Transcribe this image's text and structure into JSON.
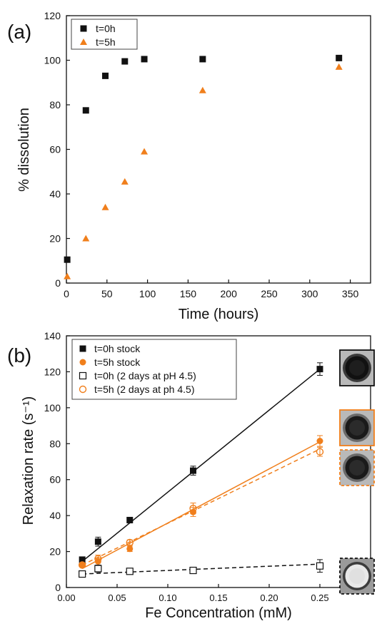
{
  "chart_data": [
    {
      "type": "scatter",
      "panel_label": "(a)",
      "xlabel": "Time (hours)",
      "ylabel": "% dissolution",
      "xlim": [
        0,
        375
      ],
      "ylim": [
        0,
        120
      ],
      "xticks": [
        0,
        50,
        100,
        150,
        200,
        250,
        300,
        350
      ],
      "yticks": [
        0,
        20,
        40,
        60,
        80,
        100,
        120
      ],
      "legend_position": "top-left",
      "grid": false,
      "series": [
        {
          "name": "t=0h",
          "marker": "square-filled",
          "color": "#111111",
          "points": [
            [
              1,
              10.5
            ],
            [
              24,
              77.5
            ],
            [
              48,
              93
            ],
            [
              72,
              99.5
            ],
            [
              96,
              100.5
            ],
            [
              168,
              100.5
            ],
            [
              336,
              101
            ]
          ]
        },
        {
          "name": "t=5h",
          "marker": "triangle-filled",
          "color": "#f07f1c",
          "points": [
            [
              1,
              3
            ],
            [
              24,
              20
            ],
            [
              48,
              34
            ],
            [
              72,
              45.5
            ],
            [
              96,
              59
            ],
            [
              168,
              86.5
            ],
            [
              336,
              97
            ]
          ]
        }
      ]
    },
    {
      "type": "scatter",
      "panel_label": "(b)",
      "xlabel": "Fe Concentration (mM)",
      "ylabel": "Relaxation rate (s⁻¹)",
      "xlim": [
        0,
        0.3
      ],
      "ylim": [
        0,
        140
      ],
      "xticks": [
        "0.00",
        "0.05",
        "0.10",
        "0.15",
        "0.20",
        "0.25"
      ],
      "yticks": [
        0,
        20,
        40,
        60,
        80,
        100,
        120,
        140
      ],
      "legend_position": "top-left",
      "grid": false,
      "series": [
        {
          "name": "t=0h stock",
          "marker": "square-filled",
          "color": "#111111",
          "line": "solid",
          "points": [
            [
              0.0156,
              15.5
            ],
            [
              0.03125,
              25.5
            ],
            [
              0.0625,
              37.5
            ],
            [
              0.125,
              65
            ],
            [
              0.25,
              121.5
            ]
          ],
          "errors": [
            1,
            2.5,
            1.5,
            2.5,
            3.5
          ],
          "fit": [
            [
              0.0156,
              14.5
            ],
            [
              0.25,
              121.5
            ]
          ]
        },
        {
          "name": "t=5h stock",
          "marker": "circle-filled",
          "color": "#f07f1c",
          "line": "solid",
          "points": [
            [
              0.0156,
              12.5
            ],
            [
              0.03125,
              14.5
            ],
            [
              0.0625,
              21.5
            ],
            [
              0.125,
              42
            ],
            [
              0.25,
              81.5
            ]
          ],
          "errors": [
            1,
            2,
            1.5,
            2.5,
            3
          ],
          "fit": [
            [
              0.0156,
              10.5
            ],
            [
              0.25,
              81
            ]
          ]
        },
        {
          "name": "t=0h (2 days at pH 4.5)",
          "marker": "square-open",
          "color": "#111111",
          "line": "dashed",
          "points": [
            [
              0.0156,
              7.5
            ],
            [
              0.03125,
              10.5
            ],
            [
              0.0625,
              9
            ],
            [
              0.125,
              9.5
            ],
            [
              0.25,
              12
            ]
          ],
          "errors": [
            1,
            2,
            1,
            1,
            3.5
          ],
          "fit": [
            [
              0.0156,
              7.5
            ],
            [
              0.25,
              13
            ]
          ]
        },
        {
          "name": "t=5h (2 days at ph 4.5)",
          "marker": "circle-open",
          "color": "#f07f1c",
          "line": "dashed",
          "points": [
            [
              0.0156,
              12.5
            ],
            [
              0.03125,
              16
            ],
            [
              0.0625,
              25
            ],
            [
              0.125,
              44
            ],
            [
              0.25,
              75.5
            ]
          ],
          "errors": [
            1,
            2,
            1.5,
            3,
            2.5
          ],
          "fit": [
            [
              0.0156,
              12.5
            ],
            [
              0.25,
              77
            ]
          ]
        }
      ],
      "inset_images": [
        {
          "name": "t=0h stock",
          "border": "solid-black",
          "value_y": 121.5,
          "tone": "dark"
        },
        {
          "name": "t=5h stock",
          "border": "solid-orange",
          "value_y": 81.5,
          "tone": "dark-gray"
        },
        {
          "name": "t=5h (2 days at ph 4.5)",
          "border": "dashed-orange",
          "value_y": 75.5,
          "tone": "dark-gray"
        },
        {
          "name": "t=0h (2 days at pH 4.5)",
          "border": "dashed-black",
          "value_y": 12,
          "tone": "light"
        }
      ]
    }
  ]
}
